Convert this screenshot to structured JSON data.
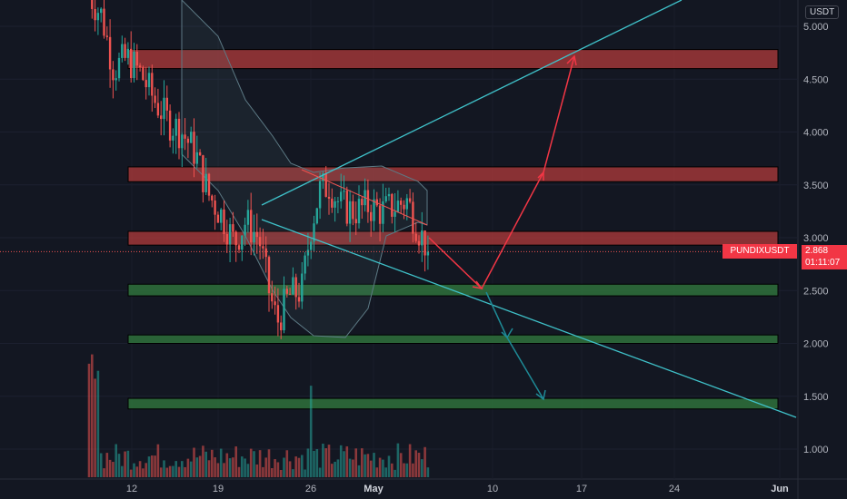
{
  "chart_data": {
    "type": "candlestick",
    "symbol": "PUNDIXUSDT",
    "unit": "USDT",
    "last_price": "2.868",
    "countdown": "01:11:07",
    "y_ticks": [
      "5.000",
      "4.500",
      "4.000",
      "3.500",
      "3.000",
      "2.500",
      "2.000",
      "1.500",
      "1.000"
    ],
    "y_tick_values": [
      5.0,
      4.5,
      4.0,
      3.5,
      3.0,
      2.5,
      2.0,
      1.5,
      1.0
    ],
    "x_ticks": [
      "12",
      "19",
      "26",
      "May",
      "10",
      "17",
      "24",
      "Jun"
    ],
    "ylim": [
      0.75,
      5.22
    ],
    "colors": {
      "up": "#26a69a",
      "down": "#ef5350",
      "resistance_zone": "#b23b3b",
      "support_zone": "#2e6b3a",
      "trendline": "#3fc1c9",
      "projection_up": "#f23645",
      "projection_down": "#1e8a96",
      "band": "#5d7a85",
      "background": "#131722"
    },
    "resistance_zones": [
      [
        4.6,
        4.78
      ],
      [
        3.53,
        3.67
      ],
      [
        2.93,
        3.06
      ]
    ],
    "support_zones": [
      [
        2.45,
        2.56
      ],
      [
        2.0,
        2.08
      ],
      [
        1.38,
        1.48
      ]
    ]
  },
  "labels": {
    "unit": "USDT",
    "symbol_badge": "PUNDIXUSDT",
    "price_badge": "2.868",
    "countdown_badge": "01:11:07"
  }
}
